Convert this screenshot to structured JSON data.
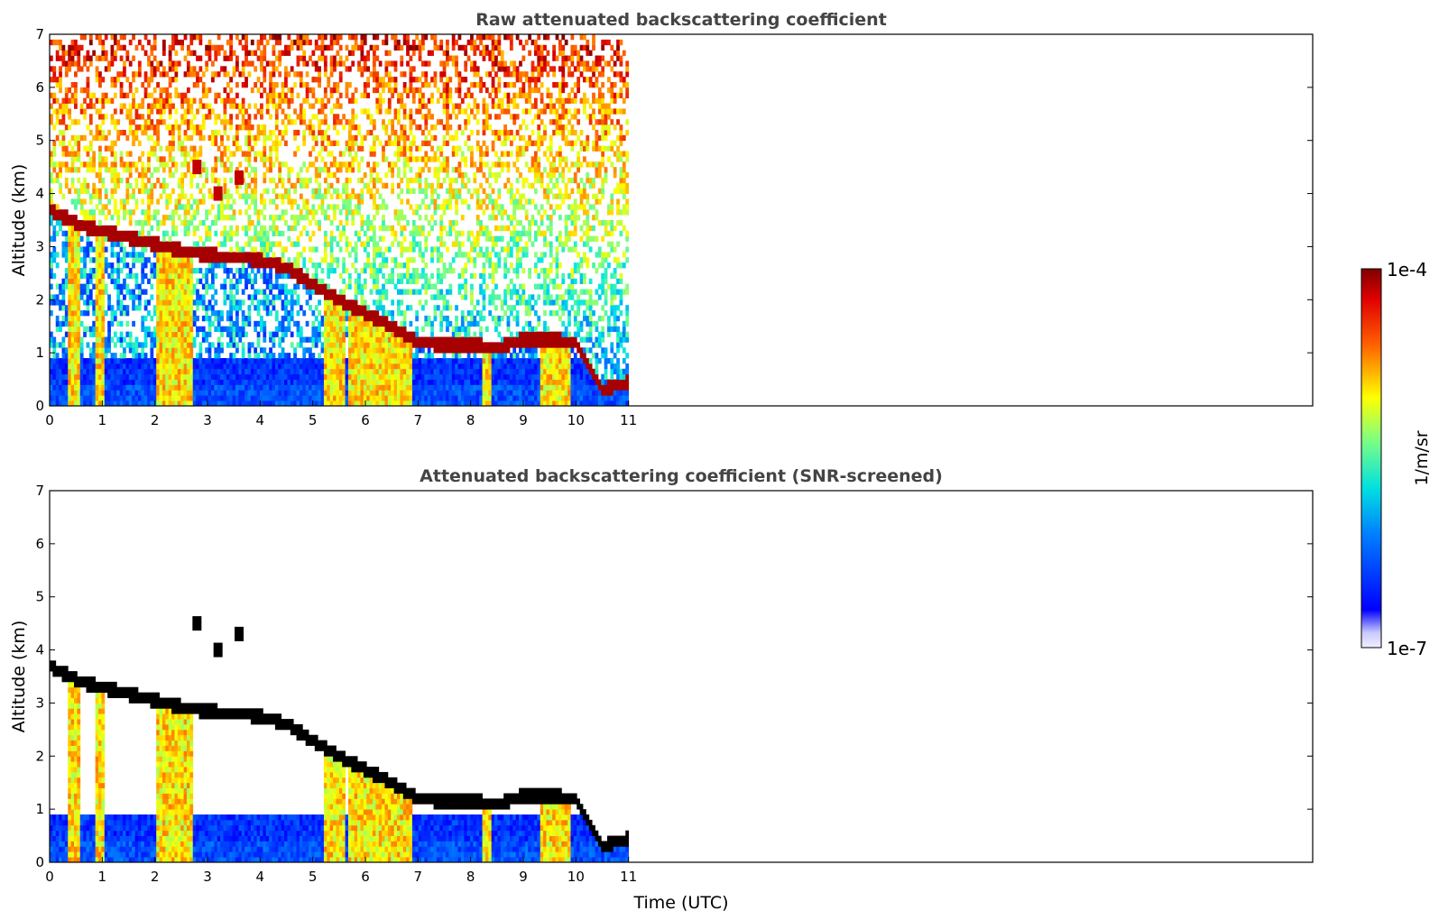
{
  "chart_data": [
    {
      "type": "heatmap",
      "title": "Raw attenuated backscattering coefficient",
      "xlabel": "",
      "ylabel": "Altitude (km)",
      "xlim": [
        0,
        11
      ],
      "ylim": [
        0,
        7
      ],
      "xticks": [
        "0",
        "1",
        "2",
        "3",
        "4",
        "5",
        "6",
        "7",
        "8",
        "9",
        "10",
        "11"
      ],
      "yticks": [
        "0",
        "1",
        "2",
        "3",
        "4",
        "5",
        "6",
        "7"
      ],
      "x_axis_max_shown": 24,
      "data_extent_x": [
        0,
        11
      ],
      "screened": false,
      "cloud_base_layer": [
        [
          0,
          3.7
        ],
        [
          0.3,
          3.55
        ],
        [
          0.6,
          3.4
        ],
        [
          1.0,
          3.3
        ],
        [
          1.4,
          3.2
        ],
        [
          1.8,
          3.1
        ],
        [
          2.2,
          3.0
        ],
        [
          2.6,
          2.9
        ],
        [
          3.0,
          2.85
        ],
        [
          3.5,
          2.8
        ],
        [
          4.0,
          2.75
        ],
        [
          4.5,
          2.6
        ],
        [
          5.0,
          2.3
        ],
        [
          5.5,
          2.0
        ],
        [
          6.0,
          1.75
        ],
        [
          6.5,
          1.5
        ],
        [
          7.0,
          1.2
        ],
        [
          7.5,
          1.15
        ],
        [
          8.0,
          1.15
        ],
        [
          8.5,
          1.1
        ],
        [
          9.0,
          1.25
        ],
        [
          9.5,
          1.25
        ],
        [
          10.0,
          1.2
        ],
        [
          10.5,
          0.3
        ],
        [
          11.0,
          0.45
        ]
      ],
      "upper_layer": [
        [
          2.8,
          4.5
        ],
        [
          3.2,
          4.0
        ],
        [
          3.6,
          4.3
        ]
      ],
      "colorbar": {
        "min": "1e-7",
        "max": "1e-4",
        "label": "1/m/sr",
        "scale": "log"
      }
    },
    {
      "type": "heatmap",
      "title": "Attenuated backscattering coefficient (SNR-screened)",
      "xlabel": "Time (UTC)",
      "ylabel": "Altitude (km)",
      "xlim": [
        0,
        11
      ],
      "ylim": [
        0,
        7
      ],
      "xticks": [
        "0",
        "1",
        "2",
        "3",
        "4",
        "5",
        "6",
        "7",
        "8",
        "9",
        "10",
        "11"
      ],
      "yticks": [
        "0",
        "1",
        "2",
        "3",
        "4",
        "5",
        "6",
        "7"
      ],
      "x_axis_max_shown": 24,
      "data_extent_x": [
        0,
        11
      ],
      "screened": true,
      "colorbar": {
        "min": "1e-7",
        "max": "1e-4",
        "label": "1/m/sr",
        "scale": "log"
      }
    }
  ],
  "colorbar": {
    "max_label": "1e-4",
    "min_label": "1e-7",
    "unit_label": "1/m/sr",
    "colormap": "jet"
  }
}
